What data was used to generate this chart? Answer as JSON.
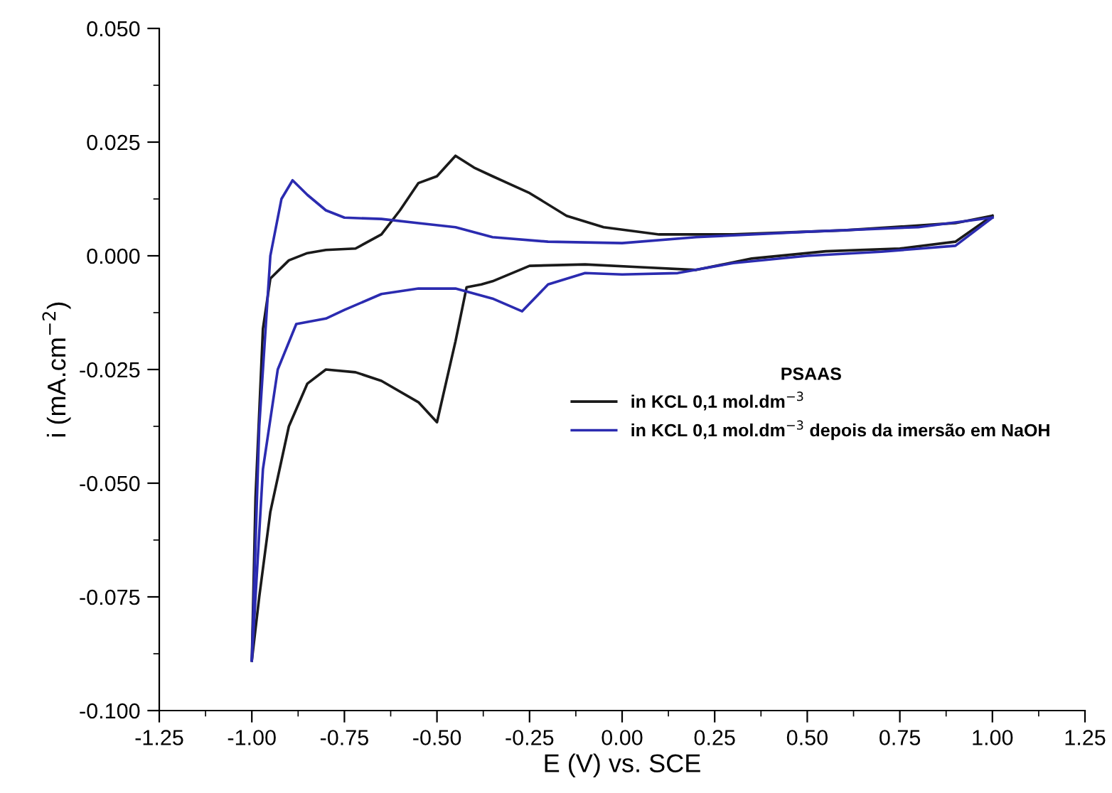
{
  "chart_data": {
    "type": "line",
    "xlabel": "E (V) vs. SCE",
    "ylabel": "i (mA.cm$^{−2}$)",
    "legend_title": "PSAAS",
    "legend": "right",
    "grid": false,
    "marker": "none",
    "line_style": "solid",
    "xlim": [
      -1.25,
      1.25
    ],
    "xticks": [
      {
        "value": -1.25,
        "label": "-1.25"
      },
      {
        "value": -1.0,
        "label": "-1.00"
      },
      {
        "value": -0.75,
        "label": "-0.75"
      },
      {
        "value": -0.5,
        "label": "-0.50"
      },
      {
        "value": -0.25,
        "label": "-0.25"
      },
      {
        "value": 0,
        "label": "0.00"
      },
      {
        "value": 0.25,
        "label": "0.25"
      },
      {
        "value": 0.5,
        "label": "0.50"
      },
      {
        "value": 0.75,
        "label": "0.75"
      },
      {
        "value": 1.0,
        "label": "1.00"
      },
      {
        "value": 1.25,
        "label": "1.25"
      }
    ],
    "ylim": [
      -0.1,
      0.05
    ],
    "yticks": [
      {
        "value": -0.1,
        "label": "-0.100"
      },
      {
        "value": -0.075,
        "label": "-0.075"
      },
      {
        "value": -0.05,
        "label": "-0.050"
      },
      {
        "value": -0.025,
        "label": "-0.025"
      },
      {
        "value": 0,
        "label": "0.000"
      },
      {
        "value": 0.025,
        "label": "0.025"
      },
      {
        "value": 0.05,
        "label": "0.050"
      }
    ],
    "series": [
      {
        "name": "in KCL 0,1 mol.dm$^{−3}$",
        "color": "#1a1a1a",
        "x": [
          -1.0,
          -0.99,
          -0.97,
          -0.95,
          -0.9,
          -0.85,
          -0.8,
          -0.72,
          -0.65,
          -0.6,
          -0.55,
          -0.5,
          -0.45,
          -0.4,
          -0.35,
          -0.25,
          -0.15,
          -0.05,
          0.1,
          0.3,
          0.6,
          0.9,
          1.0
        ],
        "values": [
          -0.089,
          -0.053,
          -0.016,
          -0.005,
          -0.001,
          0.0006,
          0.0013,
          0.0016,
          0.0047,
          0.01,
          0.016,
          0.0175,
          0.022,
          0.0194,
          0.0175,
          0.0138,
          0.0088,
          0.0063,
          0.0047,
          0.0047,
          0.0056,
          0.0072,
          0.0088
        ]
      },
      {
        "color": "#1a1a1a",
        "x": [
          1.0,
          0.9,
          0.75,
          0.55,
          0.35,
          0.2,
          0.05,
          -0.1,
          -0.25,
          -0.35,
          -0.38,
          -0.42,
          -0.45,
          -0.5,
          -0.55,
          -0.65,
          -0.72,
          -0.8,
          -0.85,
          -0.9,
          -0.95,
          -0.98,
          -1.0
        ],
        "values": [
          0.0088,
          0.0031,
          0.0016,
          0.001,
          -0.0006,
          -0.0031,
          -0.0025,
          -0.0019,
          -0.0022,
          -0.0056,
          -0.0063,
          -0.0069,
          -0.0188,
          -0.0366,
          -0.0322,
          -0.0275,
          -0.0256,
          -0.025,
          -0.0281,
          -0.0375,
          -0.0563,
          -0.075,
          -0.089
        ]
      },
      {
        "name": "in KCL 0,1 mol.dm$^{−3}$ depois da imersão em NaOH",
        "color": "#2b2bb0",
        "x": [
          -1.0,
          -0.98,
          -0.95,
          -0.92,
          -0.89,
          -0.85,
          -0.8,
          -0.75,
          -0.65,
          -0.55,
          -0.45,
          -0.35,
          -0.2,
          0.0,
          0.2,
          0.5,
          0.8,
          1.0
        ],
        "values": [
          -0.089,
          -0.0375,
          0.0,
          0.0125,
          0.0166,
          0.0134,
          0.01,
          0.0084,
          0.0081,
          0.0072,
          0.0063,
          0.0041,
          0.0031,
          0.0028,
          0.0041,
          0.0053,
          0.0063,
          0.0084
        ]
      },
      {
        "color": "#2b2bb0",
        "x": [
          1.0,
          0.9,
          0.7,
          0.5,
          0.3,
          0.15,
          0.0,
          -0.1,
          -0.2,
          -0.27,
          -0.35,
          -0.45,
          -0.55,
          -0.65,
          -0.75,
          -0.8,
          -0.88,
          -0.93,
          -0.97,
          -1.0
        ],
        "values": [
          0.0084,
          0.0022,
          0.0009,
          0.0,
          -0.0016,
          -0.0038,
          -0.0041,
          -0.0038,
          -0.0063,
          -0.0122,
          -0.0094,
          -0.0072,
          -0.0072,
          -0.0084,
          -0.0119,
          -0.0138,
          -0.015,
          -0.025,
          -0.0469,
          -0.089
        ]
      }
    ]
  }
}
